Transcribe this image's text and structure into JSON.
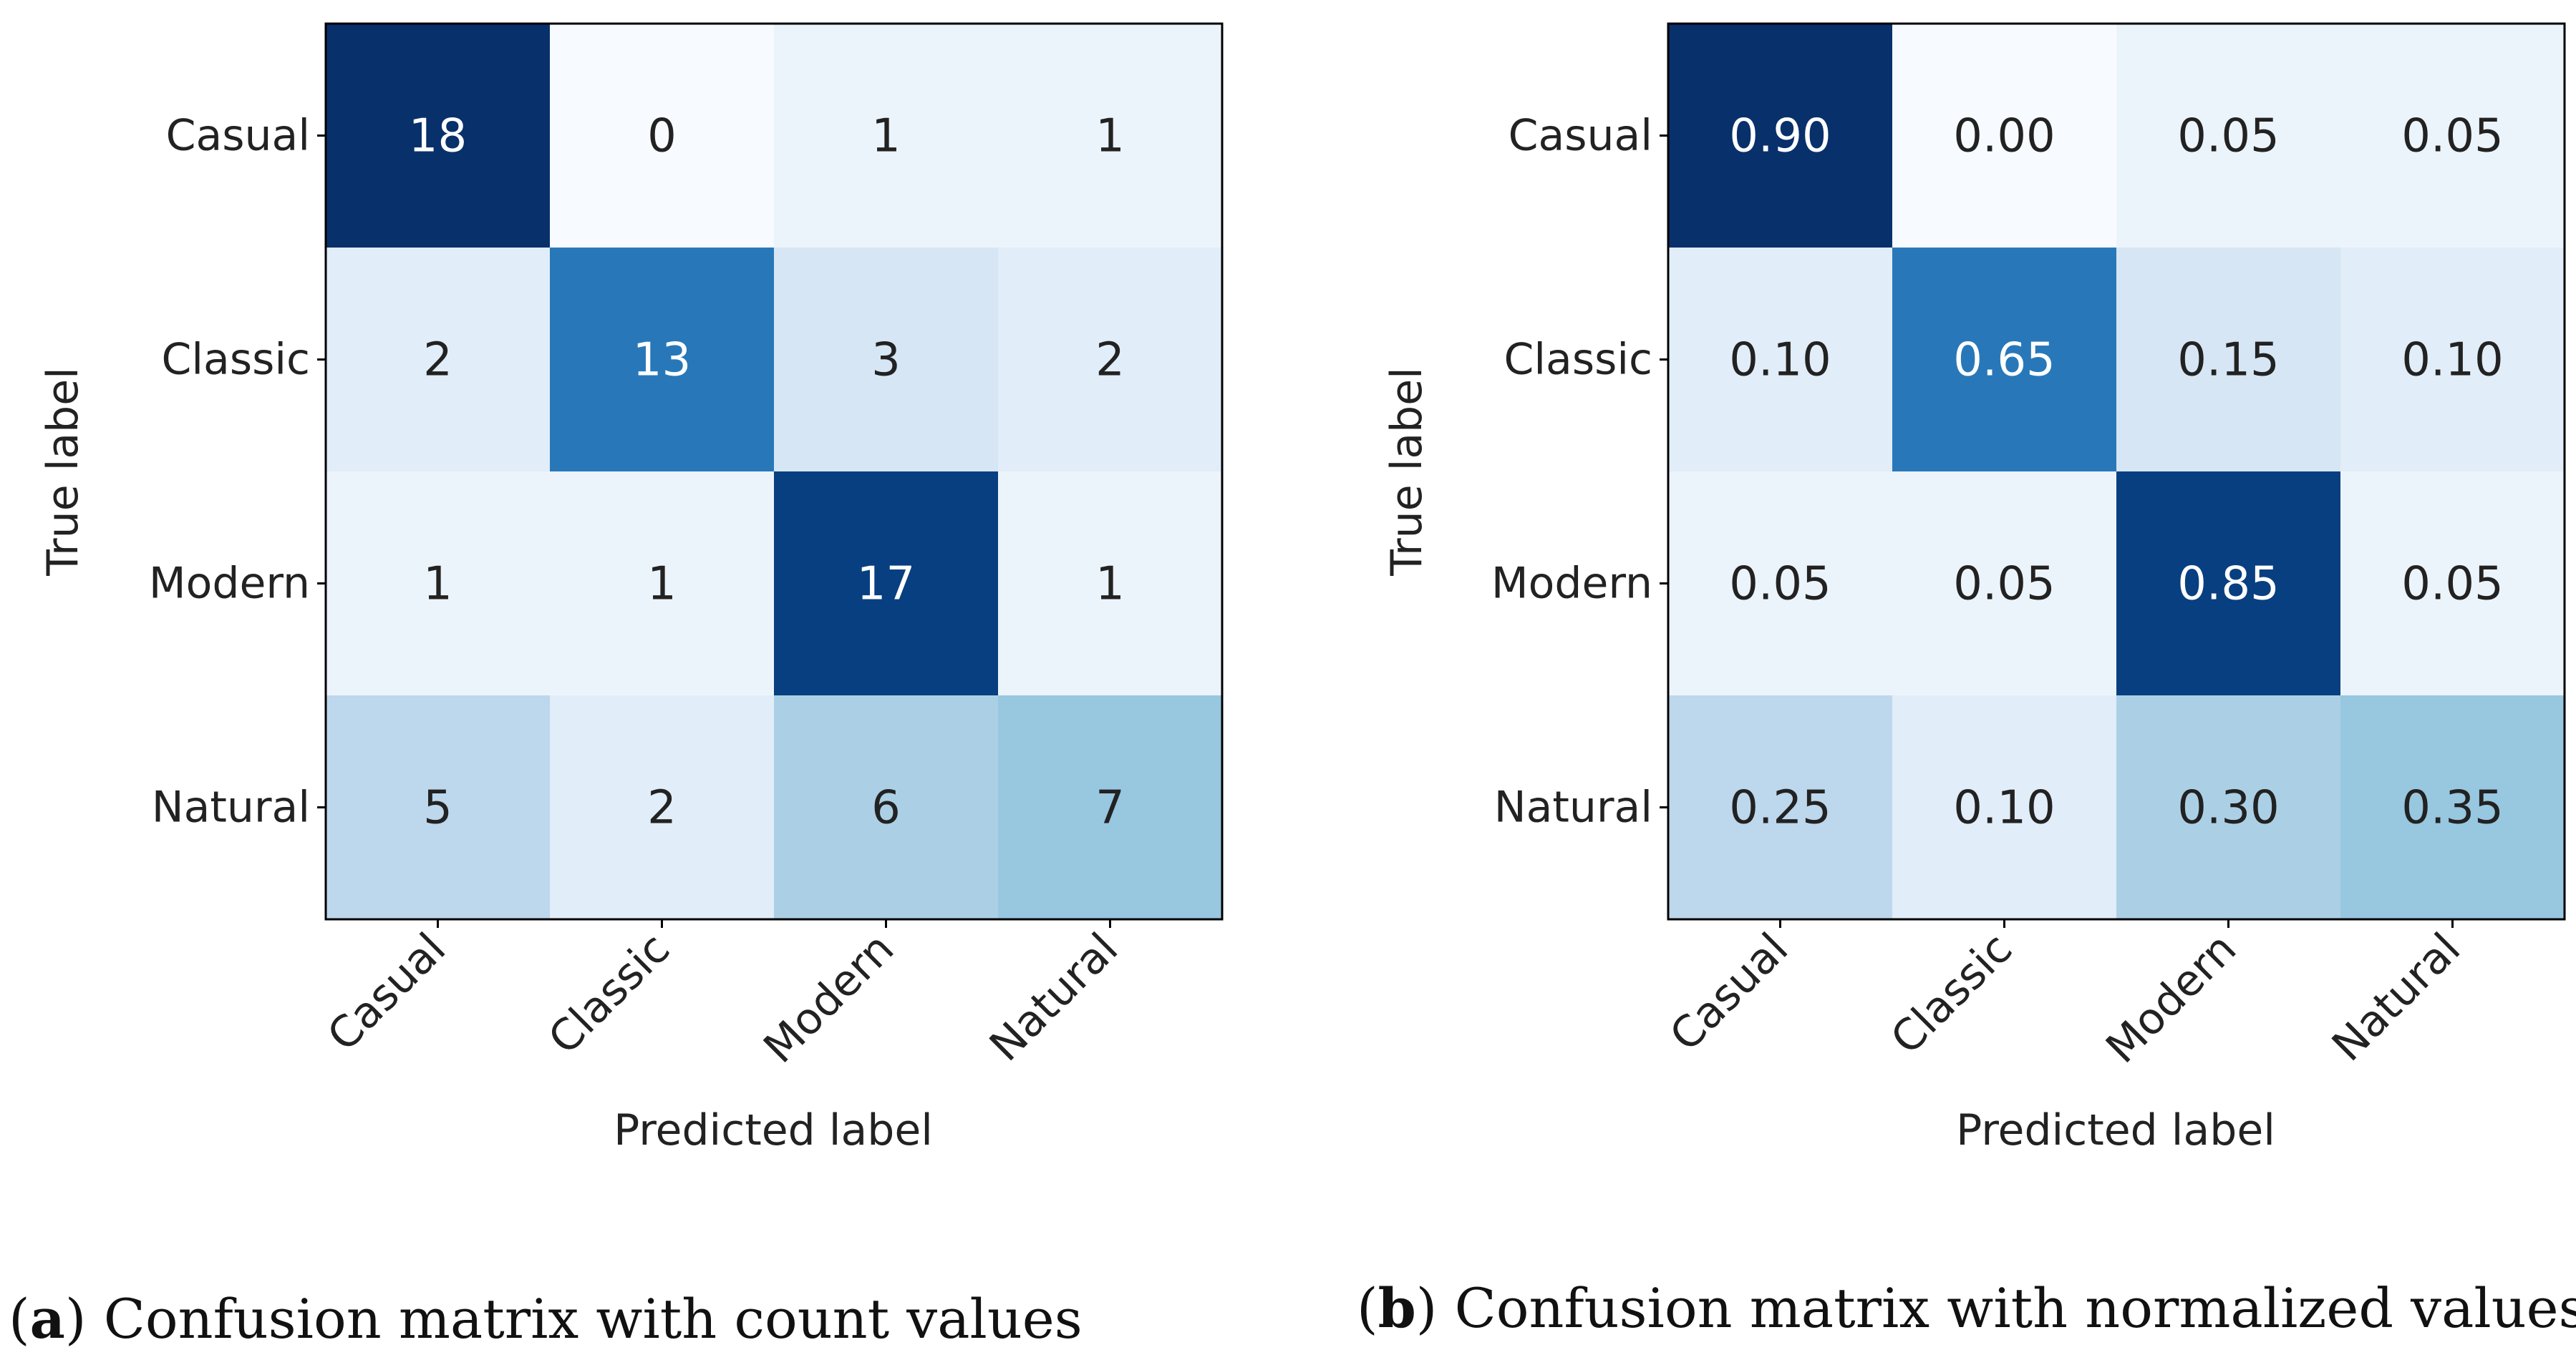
{
  "chart_data": [
    {
      "type": "heatmap",
      "title": "",
      "xlabel": "Predicted label",
      "ylabel": "True label",
      "x_categories": [
        "Casual",
        "Classic",
        "Modern",
        "Natural"
      ],
      "y_categories": [
        "Casual",
        "Classic",
        "Modern",
        "Natural"
      ],
      "values": [
        [
          18,
          0,
          1,
          1
        ],
        [
          2,
          13,
          3,
          2
        ],
        [
          1,
          1,
          17,
          1
        ],
        [
          5,
          2,
          6,
          7
        ]
      ],
      "cell_labels": [
        [
          "18",
          "0",
          "1",
          "1"
        ],
        [
          "2",
          "13",
          "3",
          "2"
        ],
        [
          "1",
          "1",
          "17",
          "1"
        ],
        [
          "5",
          "2",
          "6",
          "7"
        ]
      ],
      "value_range": [
        0,
        18
      ],
      "colormap": "Blues",
      "caption_letter": "a",
      "caption_paren_open": "(",
      "caption_text": ") Confusion matrix with count values"
    },
    {
      "type": "heatmap",
      "title": "",
      "xlabel": "Predicted label",
      "ylabel": "True label",
      "x_categories": [
        "Casual",
        "Classic",
        "Modern",
        "Natural"
      ],
      "y_categories": [
        "Casual",
        "Classic",
        "Modern",
        "Natural"
      ],
      "values": [
        [
          0.9,
          0.0,
          0.05,
          0.05
        ],
        [
          0.1,
          0.65,
          0.15,
          0.1
        ],
        [
          0.05,
          0.05,
          0.85,
          0.05
        ],
        [
          0.25,
          0.1,
          0.3,
          0.35
        ]
      ],
      "cell_labels": [
        [
          "0.90",
          "0.00",
          "0.05",
          "0.05"
        ],
        [
          "0.10",
          "0.65",
          "0.15",
          "0.10"
        ],
        [
          "0.05",
          "0.05",
          "0.85",
          "0.05"
        ],
        [
          "0.25",
          "0.10",
          "0.30",
          "0.35"
        ]
      ],
      "value_range": [
        0,
        0.9
      ],
      "colormap": "Blues",
      "caption_letter": "b",
      "caption_paren_open": "(",
      "caption_text": ") Confusion matrix with normalized values"
    }
  ],
  "colors": {
    "axis": "#000000",
    "text_dark": "#222222",
    "text_light": "#ffffff",
    "blues_low": "#f7fbff",
    "blues_high": "#08306b"
  }
}
